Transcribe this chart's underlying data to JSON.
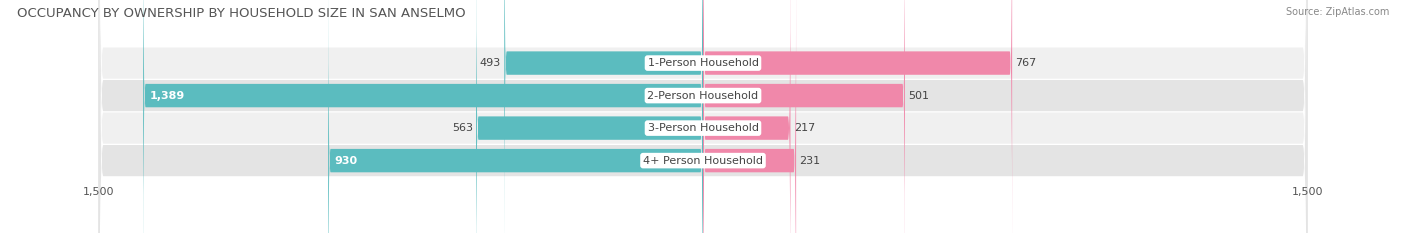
{
  "title": "OCCUPANCY BY OWNERSHIP BY HOUSEHOLD SIZE IN SAN ANSELMO",
  "source": "Source: ZipAtlas.com",
  "categories": [
    "1-Person Household",
    "2-Person Household",
    "3-Person Household",
    "4+ Person Household"
  ],
  "owner_values": [
    493,
    1389,
    563,
    930
  ],
  "renter_values": [
    767,
    501,
    217,
    231
  ],
  "owner_color": "#5bbcbf",
  "renter_color": "#f088aa",
  "axis_max": 1500,
  "bg_color": "#ffffff",
  "row_bg_light": "#f0f0f0",
  "row_bg_dark": "#e4e4e4",
  "title_fontsize": 9.5,
  "label_fontsize": 8,
  "axis_label_fontsize": 8,
  "source_fontsize": 7
}
